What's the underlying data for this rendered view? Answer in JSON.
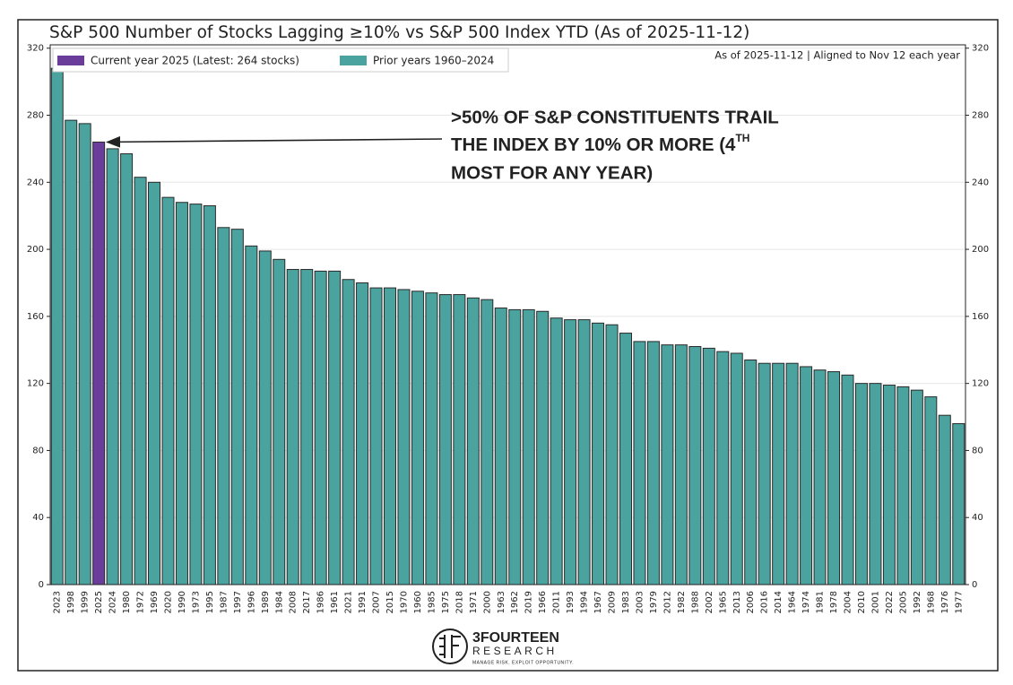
{
  "chart_data": {
    "type": "bar",
    "title": "S&P 500 Number of Stocks Lagging ≥10% vs S&P 500 Index YTD (As of 2025-11-12)",
    "note": "As of 2025-11-12 | Aligned to Nov 12 each year",
    "annotation": {
      "lines": [
        ">50% OF S&P CONSTITUENTS TRAIL",
        "THE INDEX BY 10% OR MORE (4",
        "MOST FOR ANY YEAR)"
      ],
      "superscript": "TH"
    },
    "logo": {
      "name": "3FOURTEEN",
      "sub": "RESEARCH",
      "tagline": "MANAGE RISK. EXPLOIT OPPORTUNITY."
    },
    "categories": [
      "2023",
      "1998",
      "1999",
      "2025",
      "2024",
      "1980",
      "1972",
      "1969",
      "2020",
      "1990",
      "1973",
      "1995",
      "1987",
      "1997",
      "1996",
      "1989",
      "1984",
      "2008",
      "2017",
      "1986",
      "1961",
      "2021",
      "1991",
      "2007",
      "2015",
      "1970",
      "1960",
      "1985",
      "1975",
      "2018",
      "1971",
      "2000",
      "1963",
      "1962",
      "2019",
      "1966",
      "2011",
      "1993",
      "1994",
      "1967",
      "2009",
      "1983",
      "2003",
      "1979",
      "2012",
      "1982",
      "1988",
      "2002",
      "1965",
      "2013",
      "2006",
      "2016",
      "2014",
      "1964",
      "1974",
      "1981",
      "1978",
      "2004",
      "2010",
      "2001",
      "2022",
      "2005",
      "1992",
      "1968",
      "1976",
      "1977"
    ],
    "series": [
      {
        "name": "Current year 2025 (Latest: 264 stocks)",
        "color": "#6a3d9a",
        "values": [
          null,
          null,
          null,
          264,
          null,
          null,
          null,
          null,
          null,
          null,
          null,
          null,
          null,
          null,
          null,
          null,
          null,
          null,
          null,
          null,
          null,
          null,
          null,
          null,
          null,
          null,
          null,
          null,
          null,
          null,
          null,
          null,
          null,
          null,
          null,
          null,
          null,
          null,
          null,
          null,
          null,
          null,
          null,
          null,
          null,
          null,
          null,
          null,
          null,
          null,
          null,
          null,
          null,
          null,
          null,
          null,
          null,
          null,
          null,
          null,
          null,
          null,
          null,
          null,
          null,
          null
        ]
      },
      {
        "name": "Prior years 1960–2024",
        "color": "#4aa39e",
        "values": [
          308,
          277,
          275,
          null,
          260,
          257,
          243,
          240,
          231,
          228,
          227,
          226,
          213,
          212,
          202,
          199,
          194,
          188,
          188,
          187,
          187,
          182,
          180,
          177,
          177,
          176,
          175,
          174,
          173,
          173,
          171,
          170,
          165,
          164,
          164,
          163,
          159,
          158,
          158,
          156,
          155,
          150,
          145,
          145,
          143,
          143,
          142,
          141,
          139,
          138,
          134,
          132,
          132,
          132,
          130,
          128,
          127,
          125,
          120,
          120,
          119,
          118,
          116,
          112,
          101,
          96
        ]
      }
    ],
    "ylim": [
      0,
      322
    ],
    "yticks": [
      0,
      40,
      80,
      120,
      160,
      200,
      240,
      280,
      320
    ],
    "y2lim": [
      0,
      322
    ],
    "y2ticks": [
      0,
      40,
      80,
      120,
      160,
      200,
      240,
      280,
      320
    ],
    "grid": true
  }
}
